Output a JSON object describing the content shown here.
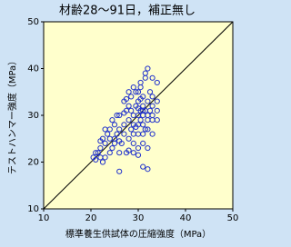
{
  "chart_data": {
    "type": "scatter",
    "title": "材齢28～91日，補正無し",
    "x_label": "標準養生供試体の圧縮強度（MPa）",
    "y_label": "テストハンマー強度（MPa）",
    "xlim": [
      10,
      50
    ],
    "ylim": [
      10,
      50
    ],
    "xticks": [
      10,
      20,
      30,
      40,
      50
    ],
    "yticks": [
      10,
      20,
      30,
      40,
      50
    ],
    "color": "#2233cc",
    "x": [
      20.5,
      21,
      21.5,
      22,
      22,
      22.5,
      21,
      23,
      23,
      22.5,
      23.5,
      24,
      24,
      24.5,
      25,
      25,
      25.5,
      24,
      26,
      26,
      26.5,
      26,
      27,
      27,
      27.5,
      27,
      28,
      28,
      28,
      27.5,
      28.5,
      28.5,
      29,
      29,
      29,
      29,
      29.5,
      29.5,
      30,
      30,
      30,
      30,
      30,
      30.5,
      30.5,
      30.5,
      31,
      31,
      31,
      31,
      31,
      31,
      31.5,
      31.5,
      32,
      32,
      32,
      32,
      32,
      32.5,
      32.5,
      33,
      33,
      33,
      33,
      34,
      34,
      34,
      27.5,
      26,
      28,
      29,
      30,
      31,
      32,
      26,
      22,
      25,
      23,
      24.5,
      25.5,
      27,
      28,
      29,
      30.5,
      31.5,
      33,
      34,
      32,
      33,
      30,
      28.5,
      29.5,
      31.5,
      30,
      31,
      30.5
    ],
    "values": [
      21,
      20.5,
      22,
      21,
      23,
      20,
      22,
      24,
      21,
      25,
      26,
      22,
      27,
      23,
      24,
      28,
      26,
      25,
      27,
      22,
      24,
      30,
      28,
      26,
      31,
      33,
      29,
      25,
      32,
      22,
      27,
      34,
      30,
      28,
      26,
      24,
      32,
      35,
      30,
      33,
      28,
      26,
      23,
      31,
      29,
      36,
      30,
      32,
      34,
      28,
      26,
      24,
      39,
      31,
      30,
      33,
      29,
      27,
      40,
      31,
      35,
      30,
      32,
      29,
      38,
      37,
      33,
      31,
      33.5,
      24.5,
      22.5,
      22,
      21.5,
      19,
      18.5,
      18,
      24.5,
      25,
      27,
      29,
      30,
      30.5,
      35,
      36,
      37,
      38,
      34,
      29,
      23,
      26,
      35,
      31,
      27.5,
      27,
      31.5,
      31,
      33.5
    ]
  }
}
